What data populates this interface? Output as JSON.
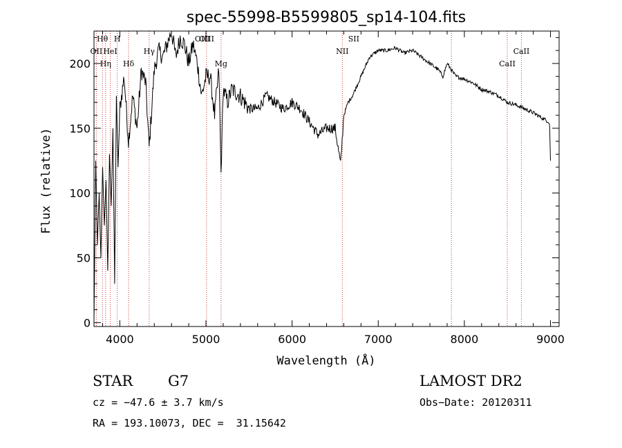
{
  "chart_data": {
    "type": "line",
    "title": "spec-55998-B5599805_sp14-104.fits",
    "xlabel": "Wavelength (Å)",
    "ylabel": "Flux (relative)",
    "xlim": [
      3700,
      9100
    ],
    "ylim": [
      -3,
      225
    ],
    "xticks": [
      4000,
      5000,
      6000,
      7000,
      8000,
      9000
    ],
    "yticks": [
      0,
      50,
      100,
      150,
      200
    ],
    "grid": false,
    "line_color": "#000000",
    "marker_color": "#cc3333",
    "spectral_lines": [
      {
        "label": "Hθ",
        "wavelength": 3798,
        "row": 1
      },
      {
        "label": "H",
        "wavelength": 3970,
        "row": 1
      },
      {
        "label": "OII",
        "wavelength": 3727,
        "row": 2
      },
      {
        "label": "HeI",
        "wavelength": 3889,
        "row": 2
      },
      {
        "label": "Hγ",
        "wavelength": 4341,
        "row": 2
      },
      {
        "label": "OIII",
        "wavelength": 4959,
        "row": 1
      },
      {
        "label": "OIII",
        "wavelength": 5007,
        "row": 1
      },
      {
        "label": "Hη",
        "wavelength": 3835,
        "row": 3
      },
      {
        "label": "Hδ",
        "wavelength": 4102,
        "row": 3
      },
      {
        "label": "Mg",
        "wavelength": 5175,
        "row": 3
      },
      {
        "label": "NII",
        "wavelength": 6583,
        "row": 2
      },
      {
        "label": "SII",
        "wavelength": 6716,
        "row": 1
      },
      {
        "label": "CaII",
        "wavelength": 8498,
        "row": 3
      },
      {
        "label": "CaII",
        "wavelength": 8662,
        "row": 2
      }
    ],
    "line_markers": [
      3727,
      3798,
      3835,
      3889,
      3970,
      4102,
      4341,
      5007,
      5175,
      6583,
      7850,
      8498,
      8662
    ],
    "series": [
      {
        "x": [
          3700,
          3720,
          3740,
          3760,
          3780,
          3800,
          3820,
          3840,
          3860,
          3880,
          3900,
          3920,
          3940,
          3960,
          3980,
          4000,
          4050,
          4100,
          4150,
          4200,
          4250,
          4300,
          4340,
          4400,
          4450,
          4500,
          4550,
          4600,
          4650,
          4700,
          4750,
          4800,
          4850,
          4900,
          4950,
          5000,
          5050,
          5100,
          5150,
          5175,
          5200,
          5250,
          5300,
          5400,
          5500,
          5600,
          5700,
          5800,
          5900,
          6000,
          6100,
          6200,
          6300,
          6400,
          6500,
          6563,
          6600,
          6650,
          6700,
          6800,
          6900,
          7000,
          7100,
          7200,
          7300,
          7400,
          7500,
          7600,
          7700,
          7750,
          7800,
          7850,
          7900,
          8000,
          8100,
          8200,
          8300,
          8400,
          8500,
          8600,
          8700,
          8800,
          8900,
          8980,
          8990,
          9000
        ],
        "y": [
          0,
          125,
          60,
          100,
          50,
          120,
          75,
          110,
          40,
          130,
          90,
          150,
          30,
          175,
          120,
          165,
          190,
          140,
          175,
          150,
          195,
          185,
          135,
          195,
          210,
          205,
          215,
          225,
          205,
          220,
          215,
          200,
          215,
          200,
          175,
          190,
          190,
          160,
          195,
          115,
          180,
          170,
          180,
          175,
          165,
          165,
          175,
          170,
          165,
          170,
          165,
          155,
          145,
          150,
          150,
          122,
          160,
          170,
          175,
          190,
          205,
          210,
          210,
          212,
          208,
          210,
          205,
          200,
          195,
          190,
          200,
          195,
          190,
          188,
          185,
          180,
          178,
          175,
          170,
          168,
          165,
          162,
          158,
          155,
          152,
          125
        ]
      }
    ]
  },
  "footer": {
    "object_type": "STAR",
    "subclass": "G7",
    "survey": "LAMOST DR2",
    "cz": "cz = −47.6 ± 3.7 km/s",
    "obs_date": "Obs−Date: 20120311",
    "coords": "RA = 193.10073, DEC =  31.15642"
  }
}
